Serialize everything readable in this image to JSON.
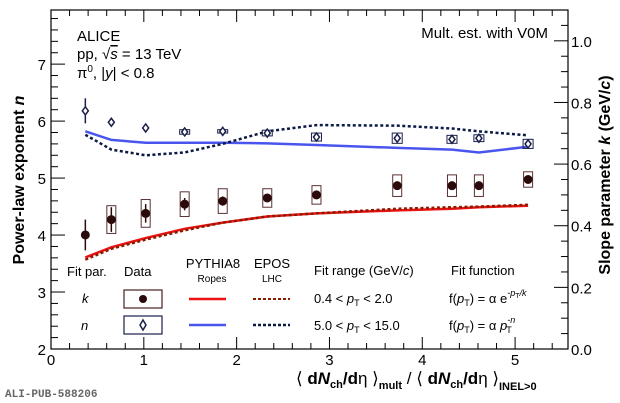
{
  "chart_data": {
    "type": "scatter",
    "title": "",
    "xlabel": "⟨ dN_ch/dη ⟩_mult / ⟨ dN_ch/dη ⟩_INEL>0",
    "ylabel_left": "Power-law exponent n",
    "ylabel_right": "Slope parameter k (GeV/c)",
    "xlim": [
      0,
      5.57
    ],
    "ylim_left": [
      2,
      7.95
    ],
    "ylim_right": [
      0,
      1.1
    ],
    "x_ticks": [
      "0",
      "1",
      "2",
      "3",
      "4",
      "5"
    ],
    "y_left_ticks": [
      "2",
      "3",
      "4",
      "5",
      "6",
      "7"
    ],
    "y_right_ticks": [
      "0.0",
      "0.2",
      "0.4",
      "0.6",
      "0.8",
      "1.0"
    ],
    "annotations": {
      "experiment": "ALICE",
      "system": "pp, √s = 13 TeV",
      "particle": "π⁰, |y| < 0.8",
      "estimator": "Mult. est. with V0M",
      "pub_id": "ALI-PUB-588206"
    },
    "x": [
      0.37,
      0.65,
      1.02,
      1.44,
      1.85,
      2.33,
      2.86,
      3.73,
      4.32,
      4.61,
      5.14
    ],
    "series": [
      {
        "name": "k data",
        "axis": "right",
        "marker": "filled-circle",
        "color": "#2a0a0a",
        "values": [
          0.37,
          0.42,
          0.44,
          0.47,
          0.48,
          0.49,
          0.5,
          0.53,
          0.53,
          0.53,
          0.55
        ],
        "stat_err": [
          0.05,
          0.04,
          0.03,
          0.02,
          0.015,
          0.01,
          0.01,
          0.01,
          0.01,
          0.01,
          0.01
        ],
        "sys_err": [
          0.0,
          0.045,
          0.045,
          0.04,
          0.04,
          0.03,
          0.03,
          0.035,
          0.035,
          0.035,
          0.025
        ]
      },
      {
        "name": "n data",
        "axis": "left",
        "marker": "open-diamond",
        "color": "#1a1f4a",
        "values": [
          6.18,
          5.98,
          5.88,
          5.81,
          5.82,
          5.79,
          5.72,
          5.7,
          5.68,
          5.7,
          5.6
        ],
        "stat_err": [
          0.22,
          0.06,
          0.05,
          0.04,
          0.03,
          0.03,
          0.03,
          0.03,
          0.03,
          0.03,
          0.03
        ],
        "sys_err": [
          0.0,
          0.0,
          0.0,
          0.04,
          0.03,
          0.05,
          0.07,
          0.09,
          0.07,
          0.06,
          0.08
        ]
      },
      {
        "name": "PYTHIA8 Ropes k",
        "axis": "right",
        "style": "solid",
        "color": "#ee1111",
        "x": [
          0.37,
          0.65,
          1.02,
          1.44,
          1.85,
          2.33,
          2.86,
          3.73,
          4.32,
          4.61,
          5.14
        ],
        "values": [
          0.297,
          0.33,
          0.36,
          0.39,
          0.41,
          0.43,
          0.44,
          0.45,
          0.455,
          0.46,
          0.465
        ]
      },
      {
        "name": "EPOS LHC k",
        "axis": "right",
        "style": "dotted",
        "color": "#8b1a00",
        "x": [
          0.37,
          0.65,
          1.02,
          1.44,
          1.85,
          2.33,
          2.86,
          3.73,
          4.32,
          4.61,
          5.14
        ],
        "values": [
          0.29,
          0.325,
          0.355,
          0.385,
          0.41,
          0.43,
          0.44,
          0.455,
          0.46,
          0.462,
          0.468
        ]
      },
      {
        "name": "PYTHIA8 Ropes n",
        "axis": "left",
        "style": "solid",
        "color": "#4a55ee",
        "x": [
          0.37,
          0.65,
          1.02,
          1.44,
          1.85,
          2.33,
          2.86,
          3.73,
          4.32,
          4.61,
          5.14
        ],
        "values": [
          5.82,
          5.67,
          5.62,
          5.62,
          5.62,
          5.61,
          5.58,
          5.53,
          5.5,
          5.45,
          5.55
        ]
      },
      {
        "name": "EPOS LHC n",
        "axis": "left",
        "style": "dotted",
        "color": "#0d1a45",
        "x": [
          0.37,
          0.65,
          1.02,
          1.44,
          1.85,
          2.33,
          2.86,
          3.73,
          4.32,
          4.61,
          5.14
        ],
        "values": [
          5.76,
          5.5,
          5.4,
          5.45,
          5.6,
          5.82,
          5.93,
          5.92,
          5.87,
          5.82,
          5.75
        ]
      }
    ],
    "legend": {
      "position": "bottom-center",
      "headers": [
        "Fit par.",
        "Data",
        "PYTHIA8",
        "EPOS",
        "Fit range (GeV/c)",
        "Fit function"
      ],
      "subheaders": {
        "pythia": "Ropes",
        "epos": "LHC"
      },
      "rows": [
        {
          "param": "k",
          "range": "0.4 < pT < 2.0",
          "range_lo": "0.4 <",
          "range_hi": "< 2.0",
          "func_lhs": "f(",
          "func_mid": ") = α e",
          "func_sup": "-pT/k"
        },
        {
          "param": "n",
          "range": "5.0 < pT < 15.0",
          "range_lo": "5.0 <",
          "range_hi": "< 15.0",
          "func_lhs": "f(",
          "func_mid": ") = α p",
          "func_sup": "-n"
        }
      ]
    }
  }
}
